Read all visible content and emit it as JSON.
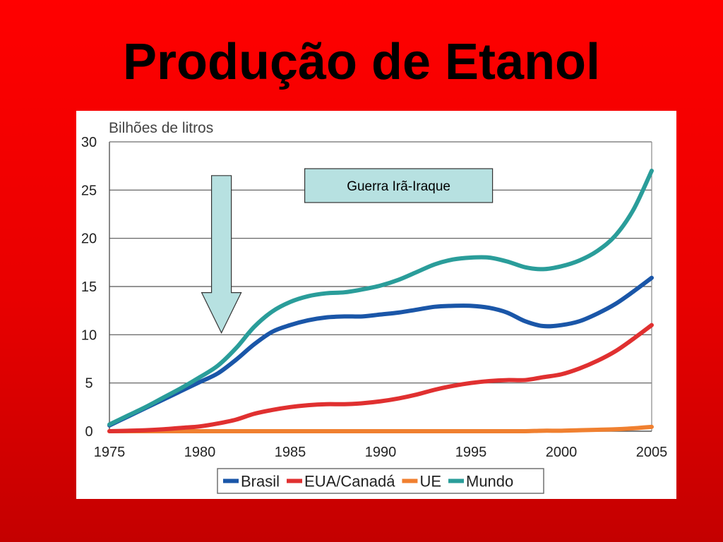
{
  "slide": {
    "title": "Produção de Etanol"
  },
  "chart_data": {
    "type": "line",
    "ylabel": "Bilhões de litros",
    "xlabel": "",
    "xlim": [
      1975,
      2005
    ],
    "ylim": [
      0,
      30
    ],
    "xticks": [
      1975,
      1980,
      1985,
      1990,
      1995,
      2000,
      2005
    ],
    "yticks": [
      0,
      5,
      10,
      15,
      20,
      25,
      30
    ],
    "grid": "horizontal",
    "legend_position": "bottom",
    "x": [
      1975,
      1976,
      1977,
      1978,
      1979,
      1980,
      1981,
      1982,
      1983,
      1984,
      1985,
      1986,
      1987,
      1988,
      1989,
      1990,
      1991,
      1992,
      1993,
      1994,
      1995,
      1996,
      1997,
      1998,
      1999,
      2000,
      2001,
      2002,
      2003,
      2004,
      2005
    ],
    "series": [
      {
        "name": "Brasil",
        "color": "#1a56a8",
        "values": [
          0.6,
          1.5,
          2.4,
          3.3,
          4.2,
          5.1,
          6.0,
          7.4,
          9.0,
          10.3,
          11.0,
          11.5,
          11.8,
          11.9,
          11.9,
          12.1,
          12.3,
          12.6,
          12.9,
          13.0,
          13.0,
          12.8,
          12.3,
          11.4,
          10.9,
          11.0,
          11.4,
          12.2,
          13.2,
          14.5,
          15.9
        ]
      },
      {
        "name": "EUA/Canadá",
        "color": "#e03030",
        "values": [
          0.0,
          0.05,
          0.1,
          0.2,
          0.35,
          0.5,
          0.8,
          1.2,
          1.8,
          2.2,
          2.5,
          2.7,
          2.8,
          2.8,
          2.9,
          3.1,
          3.4,
          3.8,
          4.3,
          4.7,
          5.0,
          5.2,
          5.3,
          5.3,
          5.6,
          5.9,
          6.5,
          7.3,
          8.3,
          9.6,
          11.0
        ]
      },
      {
        "name": "UE",
        "color": "#f08030",
        "values": [
          0.0,
          0.0,
          0.0,
          0.0,
          0.0,
          0.0,
          0.0,
          0.0,
          0.0,
          0.0,
          0.0,
          0.0,
          0.0,
          0.0,
          0.0,
          0.0,
          0.0,
          0.0,
          0.0,
          0.0,
          0.0,
          0.0,
          0.0,
          0.0,
          0.05,
          0.05,
          0.1,
          0.15,
          0.2,
          0.3,
          0.45
        ]
      },
      {
        "name": "Mundo",
        "color": "#2a9d9a",
        "values": [
          0.7,
          1.6,
          2.5,
          3.5,
          4.5,
          5.6,
          6.8,
          8.6,
          10.8,
          12.4,
          13.4,
          14.0,
          14.3,
          14.4,
          14.7,
          15.1,
          15.7,
          16.5,
          17.3,
          17.8,
          18.0,
          18.0,
          17.6,
          17.0,
          16.8,
          17.1,
          17.7,
          18.7,
          20.3,
          23.0,
          27.0
        ]
      }
    ],
    "annotations": [
      {
        "text": "Guerra Irã-Iraque",
        "x": 1991
      },
      {
        "type": "arrow-down",
        "x": 1981,
        "from_y": 26.5,
        "to_y": 10.2
      }
    ]
  },
  "colors": {
    "background": "#ff0000",
    "annotation_fill": "#b7e1e1",
    "grid": "#555555"
  }
}
